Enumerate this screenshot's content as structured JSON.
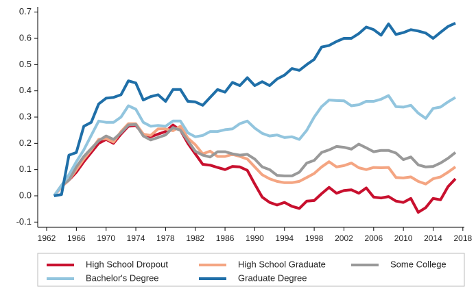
{
  "chart_data": {
    "type": "line",
    "x": [
      1963,
      1964,
      1965,
      1966,
      1967,
      1968,
      1969,
      1970,
      1971,
      1972,
      1973,
      1974,
      1975,
      1976,
      1977,
      1978,
      1979,
      1980,
      1981,
      1982,
      1983,
      1984,
      1985,
      1986,
      1987,
      1988,
      1989,
      1990,
      1991,
      1992,
      1993,
      1994,
      1995,
      1996,
      1997,
      1998,
      1999,
      2000,
      2001,
      2002,
      2003,
      2004,
      2005,
      2006,
      2007,
      2008,
      2009,
      2010,
      2011,
      2012,
      2013,
      2014,
      2015,
      2016,
      2017
    ],
    "series": [
      {
        "name": "High School Dropout",
        "color": "#c8102e",
        "values": [
          0,
          0.035,
          0.06,
          0.09,
          0.13,
          0.165,
          0.2,
          0.215,
          0.2,
          0.235,
          0.265,
          0.268,
          0.235,
          0.225,
          0.235,
          0.245,
          0.27,
          0.25,
          0.2,
          0.16,
          0.12,
          0.117,
          0.108,
          0.1,
          0.112,
          0.11,
          0.097,
          0.045,
          -0.005,
          -0.025,
          -0.035,
          -0.025,
          -0.04,
          -0.048,
          -0.02,
          -0.018,
          0.008,
          0.032,
          0.01,
          0.02,
          0.023,
          0.01,
          0.03,
          -0.005,
          -0.008,
          -0.003,
          -0.02,
          -0.025,
          -0.01,
          -0.063,
          -0.045,
          -0.01,
          -0.015,
          0.035,
          0.065
        ]
      },
      {
        "name": "High School Graduate",
        "color": "#f4a582",
        "values": [
          0,
          0.035,
          0.06,
          0.1,
          0.14,
          0.175,
          0.215,
          0.218,
          0.205,
          0.245,
          0.275,
          0.275,
          0.235,
          0.23,
          0.255,
          0.255,
          0.248,
          0.265,
          0.22,
          0.195,
          0.16,
          0.17,
          0.15,
          0.15,
          0.158,
          0.15,
          0.14,
          0.11,
          0.08,
          0.065,
          0.055,
          0.05,
          0.05,
          0.055,
          0.07,
          0.085,
          0.11,
          0.13,
          0.11,
          0.115,
          0.125,
          0.107,
          0.1,
          0.108,
          0.107,
          0.108,
          0.07,
          0.068,
          0.072,
          0.055,
          0.045,
          0.065,
          0.072,
          0.09,
          0.11
        ]
      },
      {
        "name": "Some College",
        "color": "#999999",
        "values": [
          0,
          0.04,
          0.06,
          0.11,
          0.15,
          0.18,
          0.21,
          0.228,
          0.215,
          0.24,
          0.27,
          0.272,
          0.228,
          0.213,
          0.222,
          0.232,
          0.26,
          0.25,
          0.21,
          0.17,
          0.155,
          0.148,
          0.168,
          0.168,
          0.16,
          0.155,
          0.158,
          0.14,
          0.11,
          0.1,
          0.078,
          0.076,
          0.076,
          0.09,
          0.125,
          0.135,
          0.165,
          0.175,
          0.188,
          0.185,
          0.178,
          0.197,
          0.183,
          0.168,
          0.173,
          0.173,
          0.163,
          0.138,
          0.148,
          0.118,
          0.11,
          0.112,
          0.125,
          0.143,
          0.165
        ]
      },
      {
        "name": "Bachelor's Degree",
        "color": "#92c5de",
        "values": [
          0,
          0.04,
          0.08,
          0.13,
          0.175,
          0.23,
          0.285,
          0.28,
          0.28,
          0.3,
          0.343,
          0.33,
          0.28,
          0.265,
          0.268,
          0.265,
          0.285,
          0.285,
          0.24,
          0.225,
          0.23,
          0.245,
          0.245,
          0.252,
          0.255,
          0.275,
          0.285,
          0.258,
          0.238,
          0.228,
          0.232,
          0.222,
          0.225,
          0.215,
          0.25,
          0.3,
          0.34,
          0.365,
          0.363,
          0.362,
          0.343,
          0.347,
          0.36,
          0.36,
          0.368,
          0.382,
          0.34,
          0.338,
          0.345,
          0.315,
          0.295,
          0.333,
          0.338,
          0.358,
          0.375
        ]
      },
      {
        "name": "Graduate Degree",
        "color": "#1f6fa8",
        "values": [
          0,
          0.005,
          0.155,
          0.165,
          0.265,
          0.28,
          0.35,
          0.372,
          0.375,
          0.385,
          0.438,
          0.43,
          0.365,
          0.378,
          0.385,
          0.36,
          0.405,
          0.405,
          0.36,
          0.358,
          0.345,
          0.375,
          0.405,
          0.395,
          0.432,
          0.42,
          0.45,
          0.42,
          0.435,
          0.42,
          0.445,
          0.46,
          0.485,
          0.478,
          0.5,
          0.52,
          0.567,
          0.573,
          0.588,
          0.6,
          0.6,
          0.618,
          0.643,
          0.633,
          0.612,
          0.655,
          0.615,
          0.622,
          0.633,
          0.628,
          0.62,
          0.6,
          0.623,
          0.645,
          0.658
        ]
      }
    ],
    "xlim": [
      1960.8,
      2018.2
    ],
    "xticks": [
      1962,
      1966,
      1970,
      1974,
      1978,
      1982,
      1986,
      1990,
      1994,
      1998,
      2002,
      2006,
      2010,
      2014,
      2018
    ],
    "ylim": [
      -0.12,
      0.72
    ],
    "yticks": [
      -0.1,
      {
        "value": 0,
        "label": "0.0"
      },
      0.1,
      0.2,
      0.3,
      0.4,
      0.5,
      0.6,
      0.7
    ],
    "legend": "bottom"
  }
}
